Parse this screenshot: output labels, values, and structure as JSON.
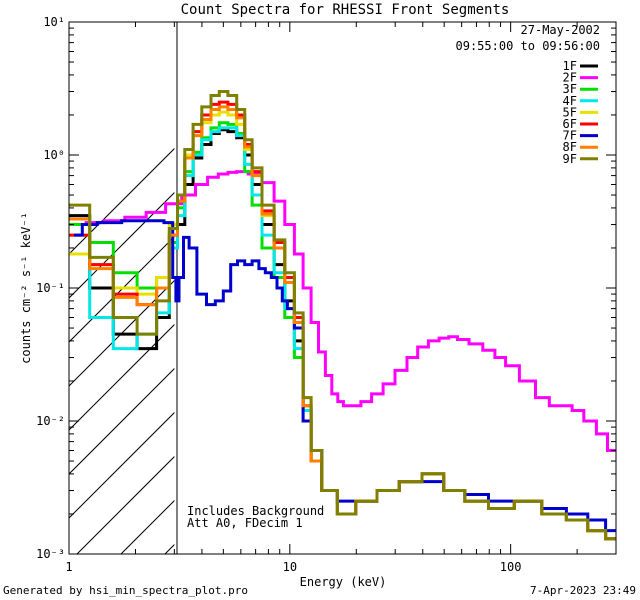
{
  "chart_data": {
    "type": "line",
    "title": "Count Spectra for RHESSI Front Segments",
    "xlabel": "Energy (keV)",
    "ylabel": "counts cm⁻² s⁻¹ keV⁻¹",
    "xscale": "log",
    "yscale": "log",
    "xlim": [
      1,
      300
    ],
    "ylim": [
      0.001,
      10
    ],
    "x_ticks": [
      {
        "value": 1,
        "label": "1"
      },
      {
        "value": 10,
        "label": "10"
      },
      {
        "value": 100,
        "label": "100"
      }
    ],
    "y_ticks": [
      {
        "value": 0.001,
        "label": "10⁻³"
      },
      {
        "value": 0.01,
        "label": "10⁻²"
      },
      {
        "value": 0.1,
        "label": "10⁻¹"
      },
      {
        "value": 1,
        "label": "10⁰"
      },
      {
        "value": 10,
        "label": "10¹"
      }
    ],
    "date": "27-May-2002",
    "time_range": "09:55:00 to 09:56:00",
    "excluded_region_keV": [
      1,
      3
    ],
    "annotation_lines": [
      "Includes Background",
      "Att A0, FDecim 1"
    ],
    "footer_left": "Generated by hsi_min_spectra_plot.pro",
    "footer_right": "7-Apr-2023 23:49",
    "series": [
      {
        "name": "1F",
        "color": "#000000",
        "x": [
          1.1,
          1.4,
          1.8,
          2.3,
          2.7,
          3.0,
          3.2,
          3.5,
          3.8,
          4.2,
          4.6,
          5.0,
          5.5,
          6.0,
          6.5,
          7.0,
          8.0,
          9.0,
          10,
          11,
          12,
          13,
          15,
          18,
          22,
          28,
          35,
          45,
          55,
          70,
          90,
          120,
          160,
          200,
          250,
          290
        ],
        "y": [
          0.35,
          0.1,
          0.045,
          0.035,
          0.06,
          0.2,
          0.3,
          0.6,
          0.95,
          1.2,
          1.45,
          1.55,
          1.5,
          1.35,
          1.0,
          0.6,
          0.3,
          0.15,
          0.08,
          0.04,
          0.012,
          0.005,
          0.003,
          0.002,
          0.0025,
          0.003,
          0.0035,
          0.004,
          0.003,
          0.0025,
          0.0022,
          0.0025,
          0.002,
          0.0018,
          0.0015,
          0.0013
        ]
      },
      {
        "name": "2F",
        "color": "#ff00ff",
        "x": [
          1.1,
          1.3,
          1.6,
          2.0,
          2.5,
          3.0,
          3.5,
          4.0,
          4.5,
          5.0,
          5.5,
          6.0,
          7.0,
          8.0,
          9.0,
          10,
          11,
          12,
          13,
          14,
          15,
          16,
          17,
          18,
          20,
          22,
          25,
          28,
          32,
          36,
          40,
          45,
          50,
          55,
          60,
          70,
          80,
          90,
          100,
          120,
          140,
          160,
          180,
          200,
          230,
          260,
          290
        ],
        "y": [
          0.3,
          0.31,
          0.32,
          0.34,
          0.37,
          0.43,
          0.5,
          0.6,
          0.68,
          0.72,
          0.74,
          0.75,
          0.72,
          0.62,
          0.45,
          0.3,
          0.18,
          0.1,
          0.055,
          0.033,
          0.022,
          0.016,
          0.014,
          0.013,
          0.013,
          0.014,
          0.016,
          0.019,
          0.024,
          0.03,
          0.036,
          0.04,
          0.042,
          0.043,
          0.041,
          0.038,
          0.034,
          0.03,
          0.026,
          0.02,
          0.015,
          0.013,
          0.013,
          0.012,
          0.01,
          0.008,
          0.006
        ]
      },
      {
        "name": "3F",
        "color": "#00e000",
        "x": [
          1.1,
          1.4,
          1.8,
          2.3,
          2.7,
          3.0,
          3.2,
          3.5,
          3.8,
          4.2,
          4.6,
          5.0,
          5.5,
          6.0,
          6.5,
          7.0,
          8.0,
          9.0,
          10,
          11,
          12,
          13,
          15,
          18,
          22,
          28,
          35,
          45,
          55,
          70,
          90,
          120,
          160,
          200,
          250,
          290
        ],
        "y": [
          0.3,
          0.22,
          0.13,
          0.1,
          0.12,
          0.22,
          0.4,
          0.75,
          1.05,
          1.35,
          1.6,
          1.75,
          1.7,
          1.45,
          0.75,
          0.42,
          0.2,
          0.12,
          0.06,
          0.03,
          0.012,
          0.005,
          0.003,
          0.002,
          0.0025,
          0.003,
          0.0035,
          0.004,
          0.003,
          0.0025,
          0.0022,
          0.0025,
          0.002,
          0.0018,
          0.0015,
          0.0013
        ]
      },
      {
        "name": "4F",
        "color": "#00e8e8",
        "x": [
          1.1,
          1.4,
          1.8,
          2.3,
          2.7,
          3.0,
          3.2,
          3.5,
          3.8,
          4.2,
          4.6,
          5.0,
          5.5,
          6.0,
          6.5,
          7.0,
          8.0,
          9.0,
          10,
          11,
          12,
          13,
          15,
          18,
          22,
          28,
          35,
          45,
          55,
          70,
          90,
          120,
          160,
          200,
          250,
          290
        ],
        "y": [
          0.33,
          0.06,
          0.035,
          0.045,
          0.065,
          0.2,
          0.35,
          0.7,
          1.0,
          1.3,
          1.5,
          1.6,
          1.6,
          1.4,
          0.85,
          0.5,
          0.25,
          0.13,
          0.07,
          0.035,
          0.012,
          0.005,
          0.003,
          0.002,
          0.0025,
          0.003,
          0.0035,
          0.004,
          0.003,
          0.0025,
          0.0022,
          0.0025,
          0.002,
          0.0018,
          0.0015,
          0.0013
        ]
      },
      {
        "name": "5F",
        "color": "#e8e000",
        "x": [
          1.1,
          1.4,
          1.8,
          2.3,
          2.7,
          3.0,
          3.2,
          3.5,
          3.8,
          4.2,
          4.6,
          5.0,
          5.5,
          6.0,
          6.5,
          7.0,
          8.0,
          9.0,
          10,
          11,
          12,
          13,
          15,
          18,
          22,
          28,
          35,
          45,
          55,
          70,
          90,
          120,
          160,
          200,
          250,
          290
        ],
        "y": [
          0.18,
          0.15,
          0.1,
          0.09,
          0.12,
          0.3,
          0.5,
          1.0,
          1.4,
          1.75,
          2.0,
          2.1,
          2.0,
          1.7,
          1.1,
          0.7,
          0.35,
          0.2,
          0.12,
          0.06,
          0.015,
          0.006,
          0.003,
          0.002,
          0.0025,
          0.003,
          0.0035,
          0.004,
          0.003,
          0.0025,
          0.0022,
          0.0025,
          0.002,
          0.0018,
          0.0015,
          0.0013
        ]
      },
      {
        "name": "6F",
        "color": "#ff0000",
        "x": [
          1.1,
          1.4,
          1.8,
          2.3,
          2.7,
          3.0,
          3.2,
          3.5,
          3.8,
          4.2,
          4.6,
          5.0,
          5.5,
          6.0,
          6.5,
          7.0,
          8.0,
          9.0,
          10,
          11,
          12,
          13,
          15,
          18,
          22,
          28,
          35,
          45,
          55,
          70,
          90,
          120,
          160,
          200,
          250,
          290
        ],
        "y": [
          0.25,
          0.15,
          0.09,
          0.075,
          0.1,
          0.25,
          0.45,
          0.95,
          1.5,
          2.0,
          2.4,
          2.5,
          2.4,
          2.0,
          1.2,
          0.75,
          0.38,
          0.22,
          0.12,
          0.06,
          0.013,
          0.005,
          0.003,
          0.002,
          0.0025,
          0.003,
          0.0035,
          0.004,
          0.003,
          0.0025,
          0.0022,
          0.0025,
          0.002,
          0.0018,
          0.0015,
          0.0013
        ]
      },
      {
        "name": "7F",
        "color": "#0000cc",
        "x": [
          1.1,
          1.2,
          1.5,
          2.0,
          2.5,
          2.9,
          3.0,
          3.1,
          3.2,
          3.4,
          3.6,
          4.0,
          4.4,
          4.8,
          5.2,
          5.6,
          6.0,
          6.5,
          7.0,
          7.5,
          8.0,
          8.5,
          9.0,
          9.5,
          10,
          11,
          12,
          13,
          15,
          18,
          22,
          28,
          35,
          45,
          55,
          70,
          90,
          120,
          160,
          200,
          250,
          290
        ],
        "y": [
          0.25,
          0.3,
          0.31,
          0.32,
          0.32,
          0.31,
          0.12,
          0.08,
          0.12,
          0.24,
          0.2,
          0.09,
          0.075,
          0.08,
          0.095,
          0.15,
          0.16,
          0.15,
          0.16,
          0.14,
          0.13,
          0.12,
          0.1,
          0.08,
          0.07,
          0.05,
          0.01,
          0.006,
          0.003,
          0.0025,
          0.0025,
          0.003,
          0.0035,
          0.0035,
          0.003,
          0.0028,
          0.0025,
          0.0025,
          0.0022,
          0.002,
          0.0018,
          0.0015
        ]
      },
      {
        "name": "8F",
        "color": "#ff8000",
        "x": [
          1.1,
          1.4,
          1.8,
          2.3,
          2.7,
          3.0,
          3.2,
          3.5,
          3.8,
          4.2,
          4.6,
          5.0,
          5.5,
          6.0,
          6.5,
          7.0,
          8.0,
          9.0,
          10,
          11,
          12,
          13,
          15,
          18,
          22,
          28,
          35,
          45,
          55,
          70,
          90,
          120,
          160,
          200,
          250,
          290
        ],
        "y": [
          0.33,
          0.14,
          0.085,
          0.075,
          0.1,
          0.25,
          0.45,
          0.95,
          1.4,
          1.85,
          2.2,
          2.3,
          2.2,
          1.9,
          1.15,
          0.7,
          0.36,
          0.2,
          0.11,
          0.055,
          0.013,
          0.005,
          0.003,
          0.002,
          0.0025,
          0.003,
          0.0035,
          0.004,
          0.003,
          0.0025,
          0.0022,
          0.0025,
          0.002,
          0.0018,
          0.0015,
          0.0013
        ]
      },
      {
        "name": "9F",
        "color": "#808000",
        "x": [
          1.1,
          1.4,
          1.8,
          2.3,
          2.7,
          3.0,
          3.2,
          3.5,
          3.8,
          4.2,
          4.6,
          5.0,
          5.5,
          6.0,
          6.5,
          7.0,
          8.0,
          9.0,
          10,
          11,
          12,
          13,
          15,
          18,
          22,
          28,
          35,
          45,
          55,
          70,
          90,
          120,
          160,
          200,
          250,
          290
        ],
        "y": [
          0.42,
          0.17,
          0.06,
          0.045,
          0.08,
          0.28,
          0.5,
          1.1,
          1.7,
          2.3,
          2.8,
          3.0,
          2.8,
          2.2,
          1.3,
          0.8,
          0.42,
          0.23,
          0.13,
          0.065,
          0.015,
          0.006,
          0.003,
          0.002,
          0.0025,
          0.003,
          0.0035,
          0.004,
          0.003,
          0.0025,
          0.0022,
          0.0025,
          0.002,
          0.0018,
          0.0015,
          0.0013
        ]
      }
    ]
  }
}
